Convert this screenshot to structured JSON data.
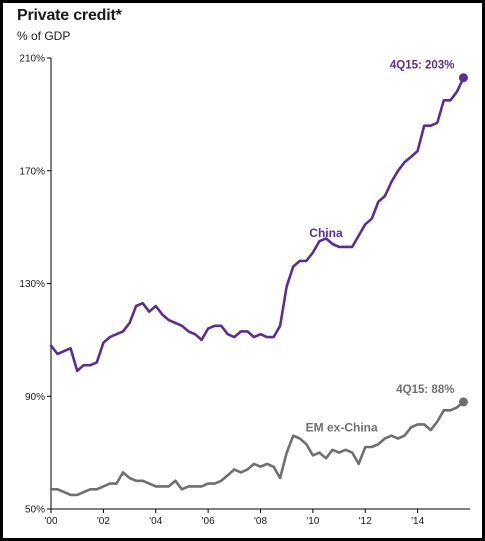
{
  "chart_data": {
    "type": "line",
    "title": "Private credit*",
    "subtitle": "% of GDP",
    "ylim": [
      50,
      210
    ],
    "xlim": [
      2000,
      2016
    ],
    "yticks": [
      {
        "value": 50,
        "label": "50%"
      },
      {
        "value": 90,
        "label": "90%"
      },
      {
        "value": 130,
        "label": "130%"
      },
      {
        "value": 170,
        "label": "170%"
      },
      {
        "value": 210,
        "label": "210%"
      }
    ],
    "xticks": [
      {
        "value": 2000,
        "label": "'00"
      },
      {
        "value": 2002,
        "label": "'02"
      },
      {
        "value": 2004,
        "label": "'04"
      },
      {
        "value": 2006,
        "label": "'06"
      },
      {
        "value": 2008,
        "label": "'08"
      },
      {
        "value": 2010,
        "label": "'10"
      },
      {
        "value": 2012,
        "label": "'12"
      },
      {
        "value": 2014,
        "label": "'14"
      }
    ],
    "grid": false,
    "series": [
      {
        "name": "China",
        "color": "#5b2d8e",
        "end_label": "4Q15: 203%",
        "values": [
          [
            2000.0,
            108
          ],
          [
            2000.25,
            105
          ],
          [
            2000.5,
            106
          ],
          [
            2000.75,
            107
          ],
          [
            2001.0,
            99
          ],
          [
            2001.25,
            101
          ],
          [
            2001.5,
            101
          ],
          [
            2001.75,
            102
          ],
          [
            2002.0,
            109
          ],
          [
            2002.25,
            111
          ],
          [
            2002.5,
            112
          ],
          [
            2002.75,
            113
          ],
          [
            2003.0,
            116
          ],
          [
            2003.25,
            122
          ],
          [
            2003.5,
            123
          ],
          [
            2003.75,
            120
          ],
          [
            2004.0,
            122
          ],
          [
            2004.25,
            119
          ],
          [
            2004.5,
            117
          ],
          [
            2004.75,
            116
          ],
          [
            2005.0,
            115
          ],
          [
            2005.25,
            113
          ],
          [
            2005.5,
            112
          ],
          [
            2005.75,
            110
          ],
          [
            2006.0,
            114
          ],
          [
            2006.25,
            115
          ],
          [
            2006.5,
            115
          ],
          [
            2006.75,
            112
          ],
          [
            2007.0,
            111
          ],
          [
            2007.25,
            113
          ],
          [
            2007.5,
            113
          ],
          [
            2007.75,
            111
          ],
          [
            2008.0,
            112
          ],
          [
            2008.25,
            111
          ],
          [
            2008.5,
            111
          ],
          [
            2008.75,
            115
          ],
          [
            2009.0,
            129
          ],
          [
            2009.25,
            136
          ],
          [
            2009.5,
            138
          ],
          [
            2009.75,
            138
          ],
          [
            2010.0,
            141
          ],
          [
            2010.25,
            145
          ],
          [
            2010.5,
            146
          ],
          [
            2010.75,
            144
          ],
          [
            2011.0,
            143
          ],
          [
            2011.25,
            143
          ],
          [
            2011.5,
            143
          ],
          [
            2011.75,
            147
          ],
          [
            2012.0,
            151
          ],
          [
            2012.25,
            153
          ],
          [
            2012.5,
            159
          ],
          [
            2012.75,
            161
          ],
          [
            2013.0,
            166
          ],
          [
            2013.25,
            170
          ],
          [
            2013.5,
            173
          ],
          [
            2013.75,
            175
          ],
          [
            2014.0,
            177
          ],
          [
            2014.25,
            186
          ],
          [
            2014.5,
            186
          ],
          [
            2014.75,
            187
          ],
          [
            2015.0,
            195
          ],
          [
            2015.25,
            195
          ],
          [
            2015.5,
            198
          ],
          [
            2015.75,
            203
          ]
        ]
      },
      {
        "name": "EM ex-China",
        "color": "#6f6f6f",
        "end_label": "4Q15: 88%",
        "values": [
          [
            2000.0,
            57
          ],
          [
            2000.25,
            57
          ],
          [
            2000.5,
            56
          ],
          [
            2000.75,
            55
          ],
          [
            2001.0,
            55
          ],
          [
            2001.25,
            56
          ],
          [
            2001.5,
            57
          ],
          [
            2001.75,
            57
          ],
          [
            2002.0,
            58
          ],
          [
            2002.25,
            59
          ],
          [
            2002.5,
            59
          ],
          [
            2002.75,
            63
          ],
          [
            2003.0,
            61
          ],
          [
            2003.25,
            60
          ],
          [
            2003.5,
            60
          ],
          [
            2003.75,
            59
          ],
          [
            2004.0,
            58
          ],
          [
            2004.25,
            58
          ],
          [
            2004.5,
            58
          ],
          [
            2004.75,
            60
          ],
          [
            2005.0,
            57
          ],
          [
            2005.25,
            58
          ],
          [
            2005.5,
            58
          ],
          [
            2005.75,
            58
          ],
          [
            2006.0,
            59
          ],
          [
            2006.25,
            59
          ],
          [
            2006.5,
            60
          ],
          [
            2006.75,
            62
          ],
          [
            2007.0,
            64
          ],
          [
            2007.25,
            63
          ],
          [
            2007.5,
            64
          ],
          [
            2007.75,
            66
          ],
          [
            2008.0,
            65
          ],
          [
            2008.25,
            66
          ],
          [
            2008.5,
            65
          ],
          [
            2008.75,
            61
          ],
          [
            2009.0,
            70
          ],
          [
            2009.25,
            76
          ],
          [
            2009.5,
            75
          ],
          [
            2009.75,
            73
          ],
          [
            2010.0,
            69
          ],
          [
            2010.25,
            70
          ],
          [
            2010.5,
            68
          ],
          [
            2010.75,
            71
          ],
          [
            2011.0,
            70
          ],
          [
            2011.25,
            71
          ],
          [
            2011.5,
            70
          ],
          [
            2011.75,
            66
          ],
          [
            2012.0,
            72
          ],
          [
            2012.25,
            72
          ],
          [
            2012.5,
            73
          ],
          [
            2012.75,
            75
          ],
          [
            2013.0,
            76
          ],
          [
            2013.25,
            75
          ],
          [
            2013.5,
            76
          ],
          [
            2013.75,
            79
          ],
          [
            2014.0,
            80
          ],
          [
            2014.25,
            80
          ],
          [
            2014.5,
            78
          ],
          [
            2014.75,
            81
          ],
          [
            2015.0,
            85
          ],
          [
            2015.25,
            85
          ],
          [
            2015.5,
            86
          ],
          [
            2015.75,
            88
          ]
        ]
      }
    ]
  }
}
